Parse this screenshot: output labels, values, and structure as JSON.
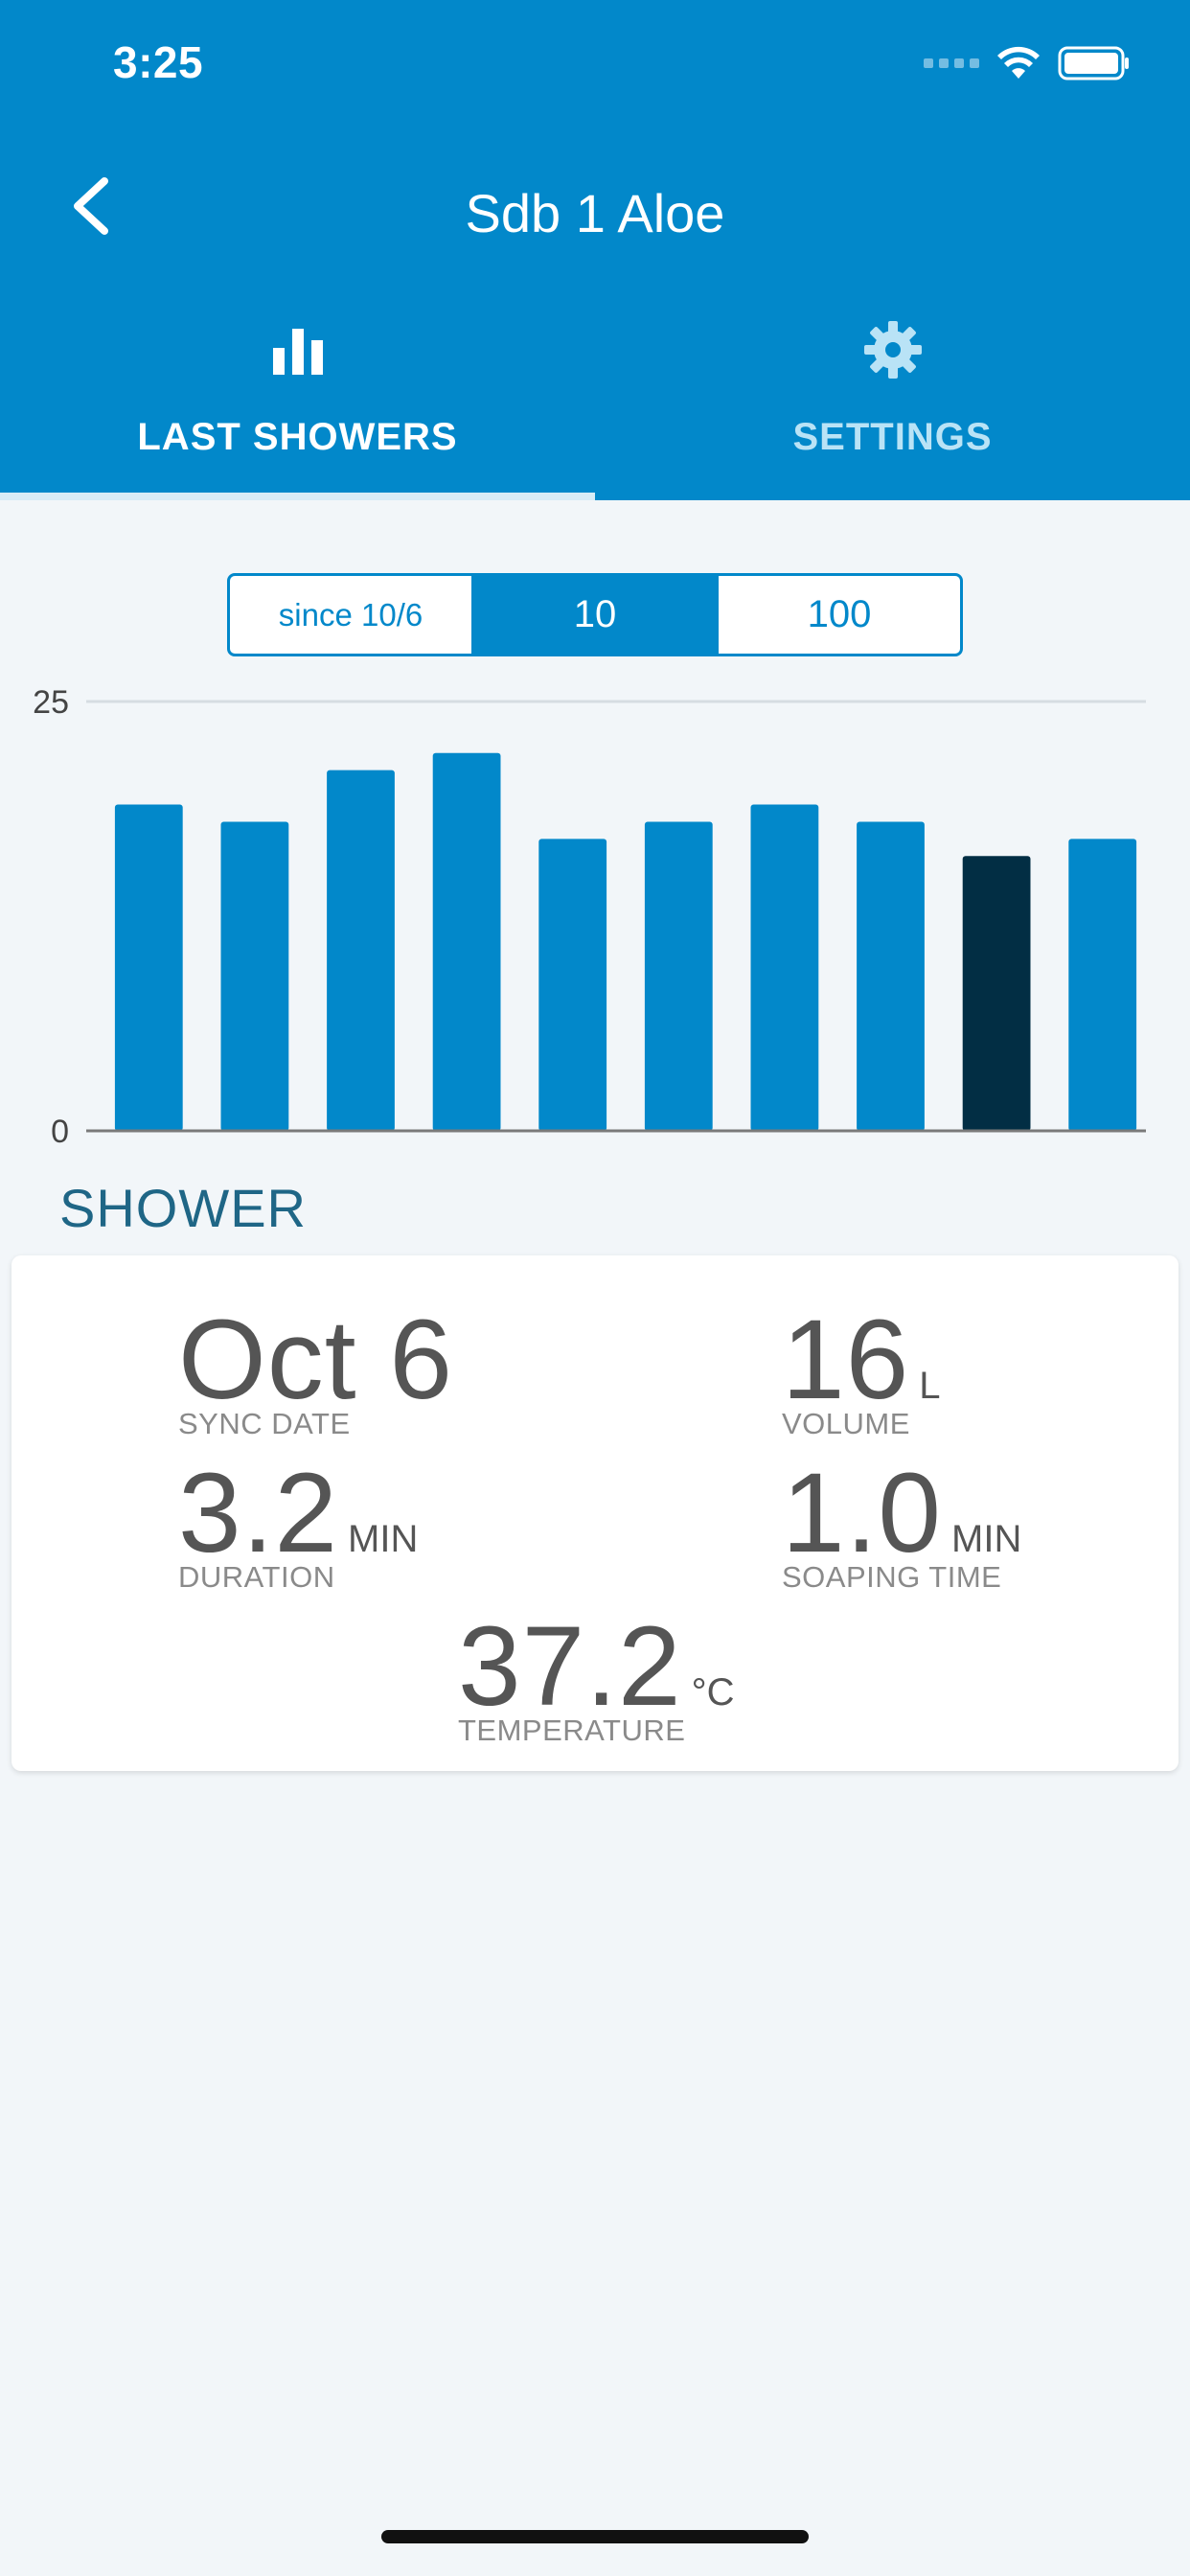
{
  "status_bar": {
    "time": "3:25"
  },
  "header": {
    "title": "Sdb 1 Aloe"
  },
  "tabs": [
    {
      "label": "LAST SHOWERS",
      "icon": "bar-chart-icon",
      "active": true
    },
    {
      "label": "SETTINGS",
      "icon": "gear-icon",
      "active": false
    }
  ],
  "segmented": {
    "options": [
      "since 10/6",
      "10",
      "100"
    ],
    "selected": "10"
  },
  "chart_data": {
    "type": "bar",
    "categories": [
      "",
      "",
      "",
      "",
      "",
      "",
      "",
      "",
      "",
      ""
    ],
    "values": [
      19,
      18,
      21,
      22,
      17,
      18,
      19,
      18,
      16,
      17
    ],
    "highlighted_index": 8,
    "ylim": [
      0,
      25
    ],
    "yticks": [
      "0",
      "25"
    ],
    "colors": {
      "bar": "#0288ca",
      "highlight": "#022e44",
      "grid": "#d6dde2",
      "axis": "#7a7a7a"
    }
  },
  "shower": {
    "section_title": "SHOWER",
    "sync_date": {
      "value": "Oct 6",
      "label": "SYNC DATE"
    },
    "volume": {
      "value": "16",
      "unit": "L",
      "label": "VOLUME"
    },
    "duration": {
      "value": "3.2",
      "unit": "MIN",
      "label": "DURATION"
    },
    "soaping_time": {
      "value": "1.0",
      "unit": "MIN",
      "label": "SOAPING TIME"
    },
    "temperature": {
      "value": "37.2",
      "unit": "°C",
      "label": "TEMPERATURE"
    }
  }
}
